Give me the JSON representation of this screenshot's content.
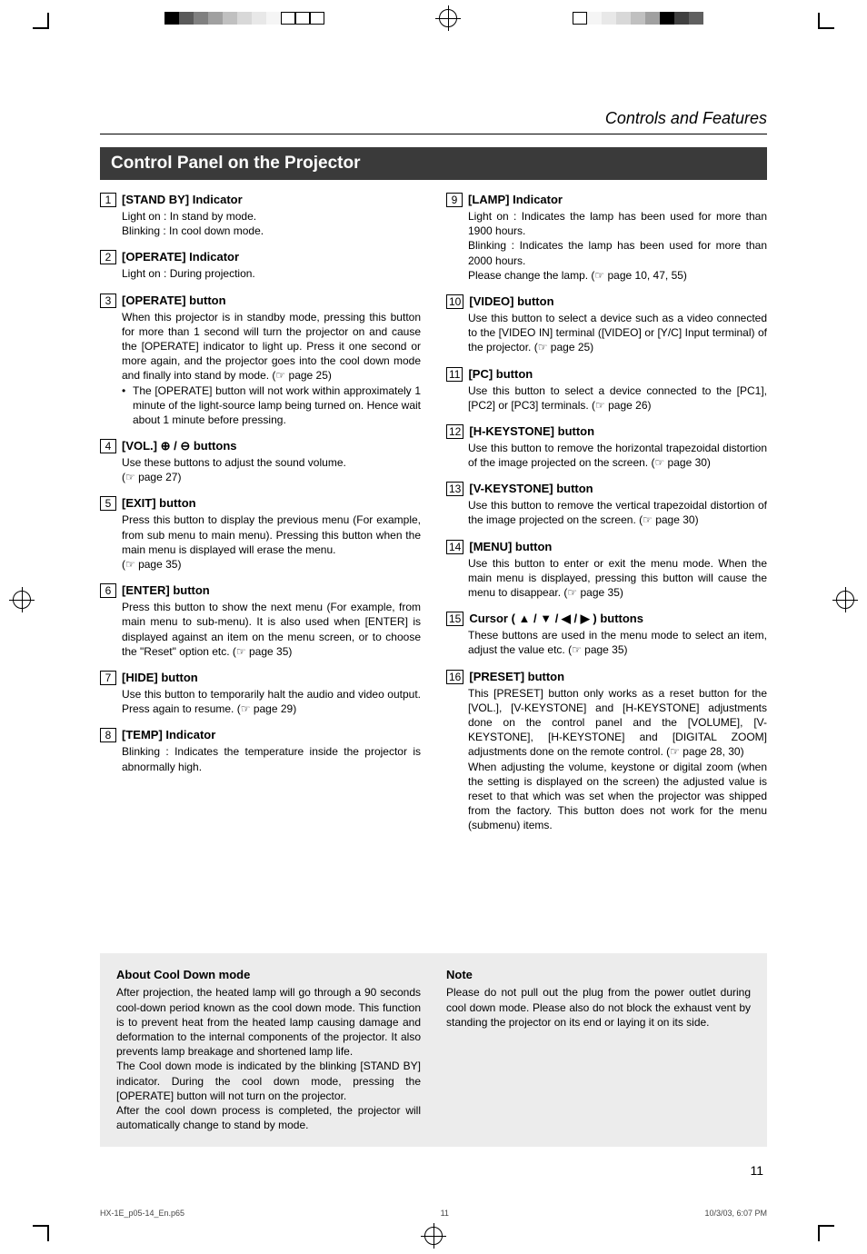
{
  "registration": {
    "colorbar_top": [
      "#000000",
      "#5a5a5a",
      "#808080",
      "#a0a0a0",
      "#c0c0c0",
      "#d8d8d8",
      "#e8e8e8",
      "#f5f5f5",
      "#ffffff",
      "#ffffff",
      "#ffffff"
    ],
    "colorbar_top_right": [
      "#ffffff",
      "#f5f5f5",
      "#e8e8e8",
      "#d8d8d8",
      "#c0c0c0",
      "#a0a0a0",
      "#000000",
      "#404040",
      "#606060"
    ]
  },
  "header": {
    "section": "Controls and Features"
  },
  "title": "Control Panel on the Projector",
  "left_items": [
    {
      "n": "1",
      "title": "[STAND BY] Indicator",
      "body": "Light on : In stand by mode.\nBlinking : In cool down mode."
    },
    {
      "n": "2",
      "title": "[OPERATE] Indicator",
      "body": "Light on : During projection."
    },
    {
      "n": "3",
      "title": "[OPERATE] button",
      "body": "When this projector is in standby mode, pressing this button for more than 1 second will turn the projector on and cause the [OPERATE] indicator to light up. Press it one second or more again, and the projector goes into the cool down mode and finally into stand by mode. (☞ page 25)",
      "bullet": "The [OPERATE] button will not work within approximately 1 minute of the light-source lamp being turned on. Hence wait about 1 minute before pressing."
    },
    {
      "n": "4",
      "title": "[VOL.] ⊕ / ⊖ buttons",
      "body": "Use these buttons to adjust the sound volume.\n(☞ page 27)"
    },
    {
      "n": "5",
      "title": "[EXIT] button",
      "body": "Press this button to display the previous menu (For example, from sub menu to main menu). Pressing this button when the main menu is displayed will erase the menu.\n(☞ page 35)"
    },
    {
      "n": "6",
      "title": "[ENTER] button",
      "body": "Press this button to show the next menu (For example, from main menu to sub-menu). It is also used when [ENTER] is displayed against an item on the menu screen, or to choose the \"Reset\" option etc. (☞ page 35)"
    },
    {
      "n": "7",
      "title": "[HIDE] button",
      "body": "Use this button to temporarily halt the audio and video output. Press again to resume. (☞ page 29)"
    },
    {
      "n": "8",
      "title": "[TEMP] Indicator",
      "body": "Blinking : Indicates the temperature inside the  projector is abnormally high."
    }
  ],
  "right_items": [
    {
      "n": "9",
      "title": "[LAMP] Indicator",
      "body": "Light on : Indicates the lamp has been used for more than 1900 hours.\nBlinking : Indicates the lamp has been used for more than 2000 hours.\nPlease change the lamp. (☞ page 10, 47, 55)"
    },
    {
      "n": "10",
      "title": "[VIDEO] button",
      "body": "Use this button to select a device such as a video connected to the [VIDEO IN] terminal ([VIDEO] or [Y/C] Input terminal) of the projector. (☞ page 25)"
    },
    {
      "n": "11",
      "title": "[PC] button",
      "body": "Use this button to select a device connected to the [PC1], [PC2] or [PC3] terminals. (☞ page 26)"
    },
    {
      "n": "12",
      "title": "[H-KEYSTONE] button",
      "body": "Use this button to remove the horizontal trapezoidal distortion of the image projected on the screen. (☞ page 30)"
    },
    {
      "n": "13",
      "title": "[V-KEYSTONE] button",
      "body": "Use this button to remove the vertical trapezoidal distortion of the image projected on the screen. (☞ page 30)"
    },
    {
      "n": "14",
      "title": "[MENU] button",
      "body": "Use this button to enter or exit the menu mode. When the main menu is displayed, pressing this button will cause the menu to disappear. (☞ page 35)"
    },
    {
      "n": "15",
      "title": "Cursor ( ▲ / ▼ / ◀ / ▶ ) buttons",
      "body": "These buttons are used in the menu mode to select an item, adjust the value etc. (☞ page 35)"
    },
    {
      "n": "16",
      "title": "[PRESET] button",
      "body": "This [PRESET] button only works as a reset button for the [VOL.], [V-KEYSTONE] and [H-KEYSTONE] adjustments done on the control panel and the [VOLUME], [V-KEYSTONE], [H-KEYSTONE] and [DIGITAL ZOOM] adjustments done on the remote control. (☞ page 28, 30)\nWhen adjusting the volume, keystone or digital zoom (when the setting is displayed on the screen) the adjusted value is reset to that which was set when the projector was shipped from the factory. This button does not work for the menu (submenu) items."
    }
  ],
  "note_box": {
    "left_title": "About Cool Down mode",
    "left_text": "After projection, the heated lamp will go through a 90 seconds cool-down period known as the cool down mode. This function is to prevent heat from the heated lamp causing damage and deformation to the internal components of the projector. It also prevents lamp breakage and shortened lamp life.\nThe Cool down mode is indicated by the blinking [STAND BY] indicator.  During the cool down mode, pressing the [OPERATE] button will not turn on the projector.\nAfter the cool down process is completed, the projector will automatically change to stand by mode.",
    "right_title": "Note",
    "right_text": "Please do not pull out the plug from the power outlet during cool down mode. Please also do not block the exhaust vent by standing the projector on its end or laying it on its side."
  },
  "page_number": "11",
  "footer": {
    "file": "HX-1E_p05-14_En.p65",
    "page": "11",
    "date": "10/3/03, 6:07 PM"
  },
  "colors": {
    "titlebar_bg": "#3a3a3a",
    "titlebar_fg": "#ffffff",
    "notebox_bg": "#ececec",
    "text": "#000000"
  }
}
